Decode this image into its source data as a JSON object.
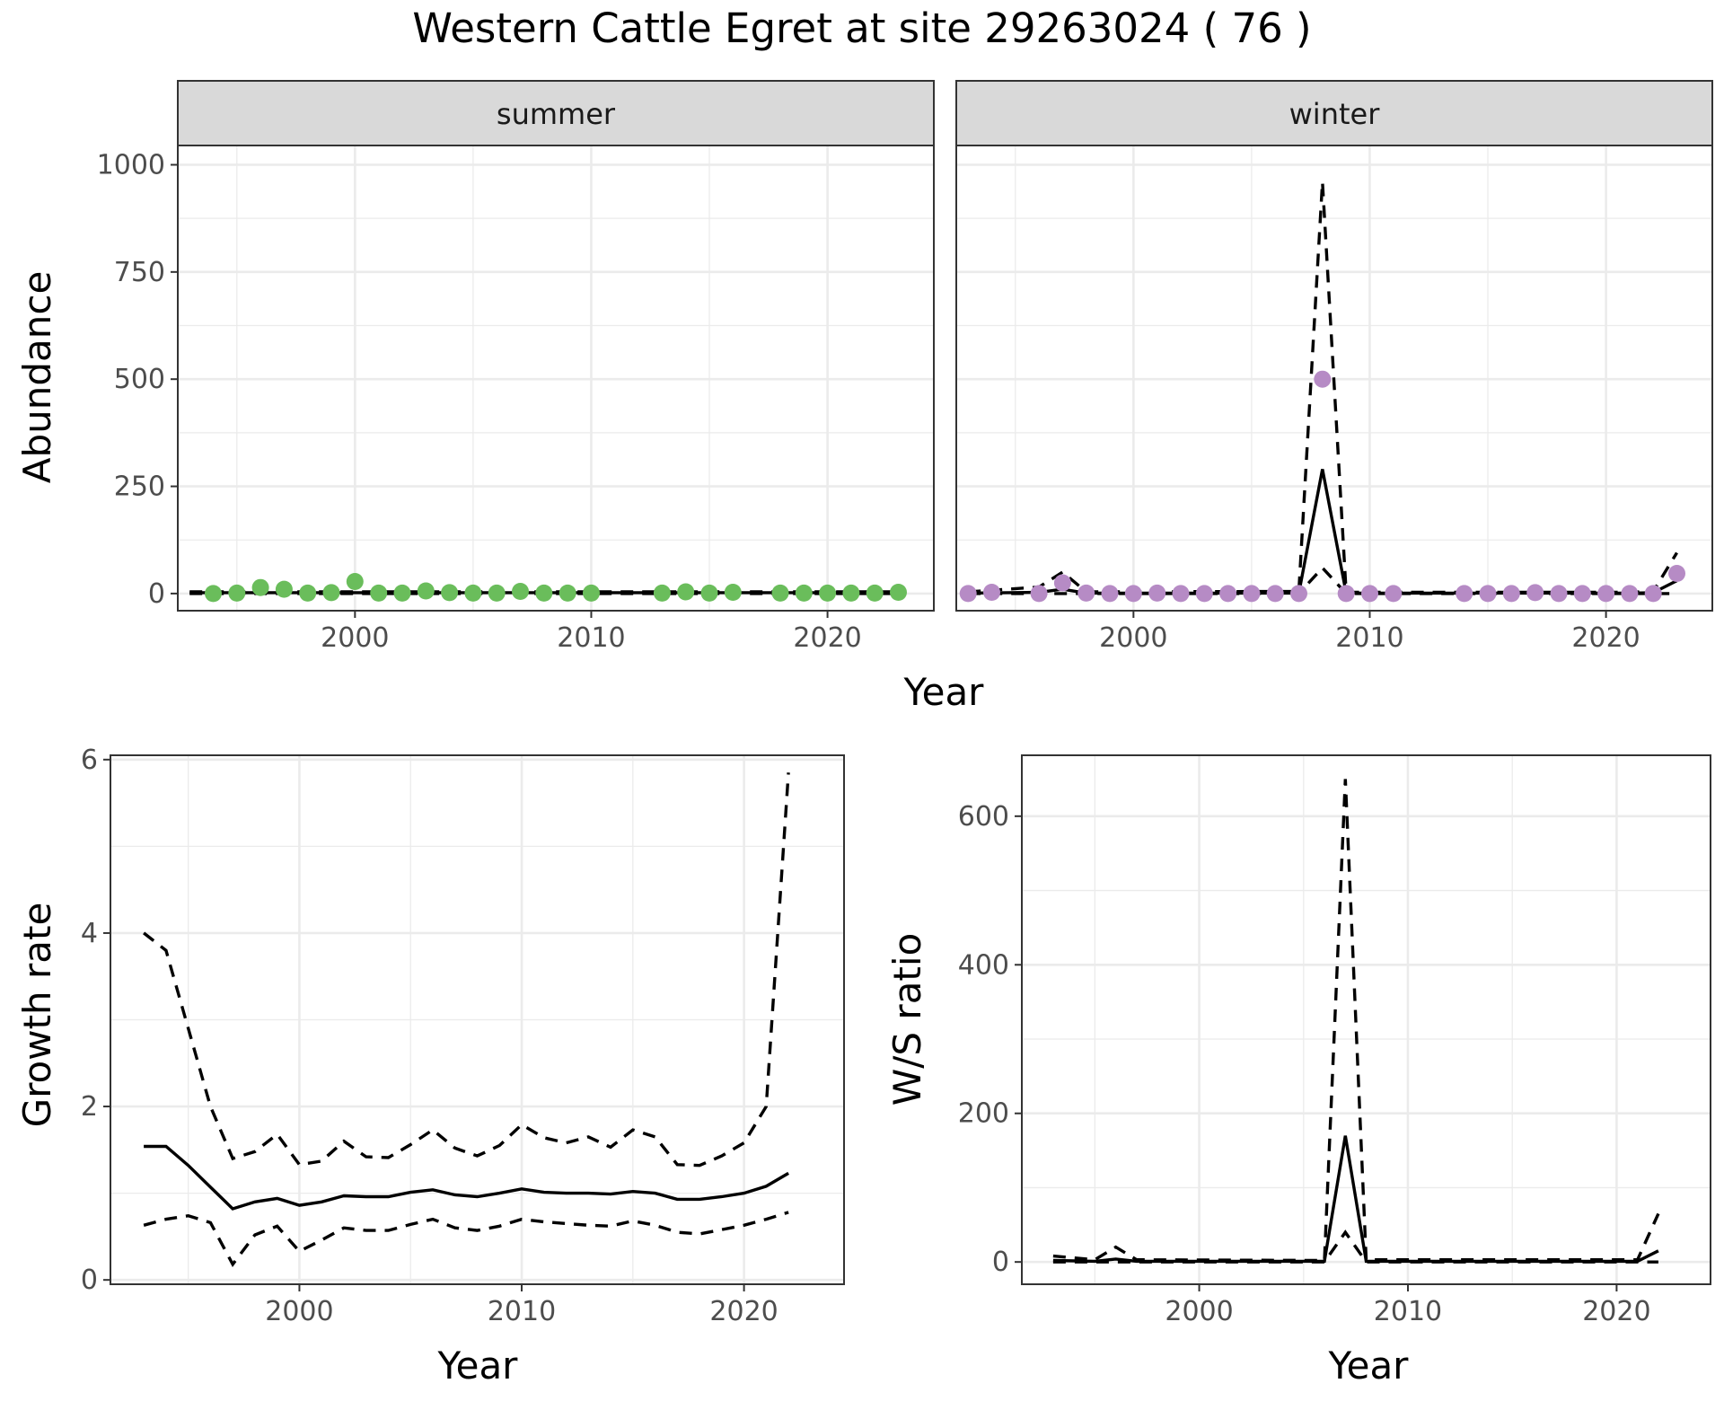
{
  "title": "Western Cattle Egret at site 29263024 ( 76 )",
  "colors": {
    "summer": "#6abd5b",
    "winter": "#b68bc5",
    "line": "#000000"
  },
  "chart_data": [
    {
      "type": "line",
      "facet": "summer",
      "strip_label": "summer",
      "ylabel": "Abundance",
      "xlabel": "Year",
      "xlim": [
        1992.5,
        2024.5
      ],
      "ylim": [
        -40,
        1045
      ],
      "xticks": [
        2000,
        2010,
        2020
      ],
      "yticks": [
        0,
        250,
        500,
        750,
        1000
      ],
      "points": {
        "x": [
          1994,
          1995,
          1996,
          1997,
          1998,
          1999,
          2000,
          2001,
          2002,
          2003,
          2004,
          2005,
          2006,
          2007,
          2008,
          2009,
          2010,
          2013,
          2014,
          2015,
          2016,
          2018,
          2019,
          2020,
          2021,
          2022,
          2023
        ],
        "y": [
          0,
          1,
          14,
          10,
          1,
          2,
          28,
          1,
          1,
          6,
          2,
          1,
          1,
          5,
          1,
          1,
          1,
          1,
          4,
          1,
          3,
          1,
          1,
          1,
          1,
          1,
          3
        ]
      },
      "series": [
        {
          "name": "",
          "style": "solid",
          "x": [
            1993,
            2023
          ],
          "y": [
            2,
            2
          ]
        },
        {
          "name": "",
          "style": "dashed",
          "x": [
            1993,
            2023
          ],
          "y": [
            4,
            4
          ]
        },
        {
          "name": "",
          "style": "dashed",
          "x": [
            1993,
            2023
          ],
          "y": [
            0,
            0
          ]
        }
      ]
    },
    {
      "type": "line",
      "facet": "winter",
      "strip_label": "winter",
      "xlabel": "Year",
      "xlim": [
        1992.5,
        2024.5
      ],
      "ylim": [
        -40,
        1045
      ],
      "xticks": [
        2000,
        2010,
        2020
      ],
      "points": {
        "x": [
          1993,
          1994,
          1996,
          1997,
          1998,
          1999,
          2000,
          2001,
          2002,
          2003,
          2004,
          2005,
          2006,
          2007,
          2008,
          2009,
          2010,
          2011,
          2014,
          2015,
          2016,
          2017,
          2018,
          2019,
          2020,
          2021,
          2022,
          2023
        ],
        "y": [
          0,
          3,
          0,
          25,
          1,
          0,
          0,
          1,
          0,
          0,
          0,
          0,
          0,
          0,
          500,
          0,
          0,
          0,
          0,
          0,
          0,
          2,
          0,
          0,
          0,
          0,
          0,
          47
        ]
      },
      "series": [
        {
          "name": "",
          "style": "solid",
          "x": [
            1993,
            1996,
            1997,
            1998,
            2007,
            2008,
            2009,
            2021,
            2022,
            2023
          ],
          "y": [
            1,
            3,
            10,
            1,
            1,
            290,
            1,
            1,
            2,
            30
          ]
        },
        {
          "name": "",
          "style": "dashed",
          "x": [
            1993,
            1996,
            1997,
            1998,
            2007,
            2008,
            2009,
            2021,
            2022,
            2023
          ],
          "y": [
            4,
            15,
            50,
            4,
            5,
            960,
            3,
            3,
            5,
            95
          ]
        },
        {
          "name": "",
          "style": "dashed",
          "x": [
            1993,
            2007,
            2008,
            2009,
            2023
          ],
          "y": [
            0,
            0,
            60,
            0,
            0
          ]
        }
      ]
    },
    {
      "type": "line",
      "facet": "growth",
      "ylabel": "Growth rate",
      "xlabel": "Year",
      "xlim": [
        1991.5,
        2024.5
      ],
      "ylim": [
        -0.05,
        6.05
      ],
      "xticks": [
        2000,
        2010,
        2020
      ],
      "yticks": [
        0,
        2,
        4,
        6
      ],
      "series": [
        {
          "name": "",
          "style": "solid",
          "x": [
            1993,
            1994,
            1995,
            1996,
            1997,
            1998,
            1999,
            2000,
            2001,
            2002,
            2003,
            2004,
            2005,
            2006,
            2007,
            2008,
            2009,
            2010,
            2011,
            2012,
            2013,
            2014,
            2015,
            2016,
            2017,
            2018,
            2019,
            2020,
            2021,
            2022
          ],
          "y": [
            1.54,
            1.54,
            1.32,
            1.07,
            0.82,
            0.9,
            0.94,
            0.86,
            0.9,
            0.97,
            0.96,
            0.96,
            1.01,
            1.04,
            0.98,
            0.96,
            1.0,
            1.05,
            1.01,
            1.0,
            1.0,
            0.99,
            1.02,
            1.0,
            0.93,
            0.93,
            0.96,
            1.0,
            1.08,
            1.23
          ]
        },
        {
          "name": "",
          "style": "dashed",
          "x": [
            1993,
            1994,
            1995,
            1996,
            1997,
            1998,
            1999,
            2000,
            2001,
            2002,
            2003,
            2004,
            2005,
            2006,
            2007,
            2008,
            2009,
            2010,
            2011,
            2012,
            2013,
            2014,
            2015,
            2016,
            2017,
            2018,
            2019,
            2020,
            2021,
            2022
          ],
          "y": [
            4.0,
            3.8,
            2.9,
            2.0,
            1.4,
            1.48,
            1.68,
            1.33,
            1.37,
            1.6,
            1.42,
            1.41,
            1.56,
            1.73,
            1.52,
            1.43,
            1.55,
            1.79,
            1.64,
            1.58,
            1.65,
            1.53,
            1.73,
            1.65,
            1.33,
            1.32,
            1.43,
            1.58,
            2.0,
            5.85
          ]
        },
        {
          "name": "",
          "style": "dashed",
          "x": [
            1993,
            1994,
            1995,
            1996,
            1997,
            1998,
            1999,
            2000,
            2001,
            2002,
            2003,
            2004,
            2005,
            2006,
            2007,
            2008,
            2009,
            2010,
            2011,
            2012,
            2013,
            2014,
            2015,
            2016,
            2017,
            2018,
            2019,
            2020,
            2021,
            2022
          ],
          "y": [
            0.63,
            0.7,
            0.74,
            0.66,
            0.18,
            0.52,
            0.62,
            0.33,
            0.46,
            0.6,
            0.57,
            0.57,
            0.64,
            0.7,
            0.6,
            0.57,
            0.62,
            0.7,
            0.67,
            0.65,
            0.63,
            0.62,
            0.68,
            0.63,
            0.55,
            0.53,
            0.58,
            0.63,
            0.7,
            0.78
          ]
        }
      ]
    },
    {
      "type": "line",
      "facet": "ratio",
      "ylabel": "W/S ratio",
      "xlabel": "Year",
      "xlim": [
        1991.5,
        2024.5
      ],
      "ylim": [
        -30,
        682
      ],
      "xticks": [
        2000,
        2010,
        2020
      ],
      "yticks": [
        0,
        200,
        400,
        600
      ],
      "series": [
        {
          "name": "",
          "style": "solid",
          "x": [
            1993,
            1995,
            1996,
            1997,
            2006,
            2007,
            2008,
            2021,
            2022
          ],
          "y": [
            2,
            1,
            4,
            1,
            1,
            170,
            1,
            1,
            15
          ]
        },
        {
          "name": "",
          "style": "dashed",
          "x": [
            1993,
            1995,
            1996,
            1997,
            2006,
            2007,
            2008,
            2021,
            2022
          ],
          "y": [
            8,
            3,
            20,
            3,
            2,
            650,
            3,
            3,
            65
          ]
        },
        {
          "name": "",
          "style": "dashed",
          "x": [
            1993,
            2006,
            2007,
            2008,
            2022
          ],
          "y": [
            0,
            0,
            40,
            0,
            0
          ]
        }
      ]
    }
  ]
}
